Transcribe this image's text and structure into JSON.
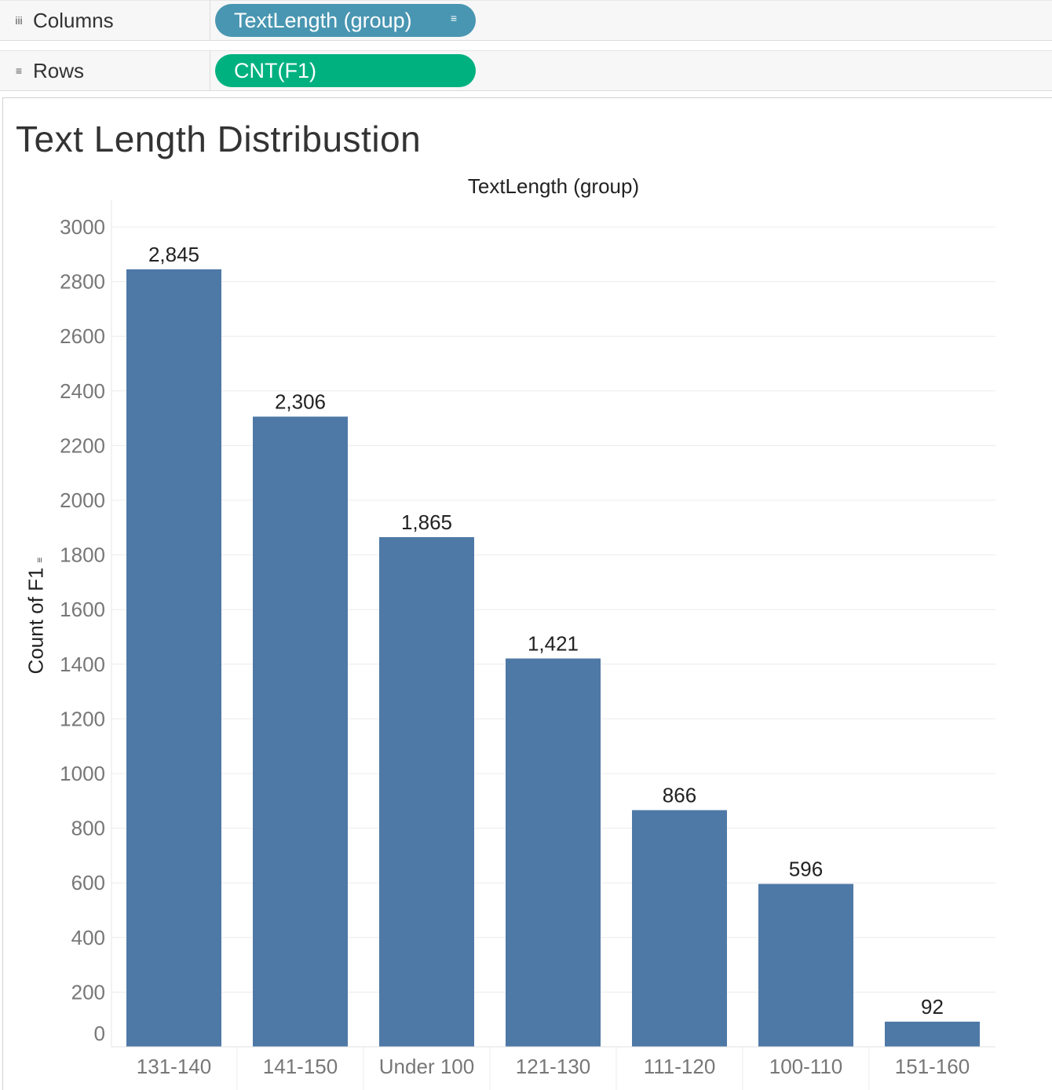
{
  "shelves": {
    "columns": {
      "label": "Columns",
      "icon": "iii",
      "pill": "TextLength (group)"
    },
    "rows": {
      "label": "Rows",
      "icon": "≡",
      "pill": "CNT(F1)"
    }
  },
  "colors": {
    "bar": "#4e79a7",
    "dimension_pill": "#4996b2",
    "measure_pill": "#00b180"
  },
  "chart_data": {
    "type": "bar",
    "title": "Text Length Distribustion",
    "column_header": "TextLength (group)",
    "xlabel": "",
    "ylabel": "Count of F1",
    "categories": [
      "131-140",
      "141-150",
      "Under 100",
      "121-130",
      "111-120",
      "100-110",
      "151-160"
    ],
    "values": [
      2845,
      2306,
      1865,
      1421,
      866,
      596,
      92
    ],
    "value_labels": [
      "2,845",
      "2,306",
      "1,865",
      "1,421",
      "866",
      "596",
      "92"
    ],
    "ylim": [
      0,
      3000
    ],
    "yticks": [
      0,
      200,
      400,
      600,
      800,
      1000,
      1200,
      1400,
      1600,
      1800,
      2000,
      2200,
      2400,
      2600,
      2800,
      3000
    ],
    "grid": true
  }
}
